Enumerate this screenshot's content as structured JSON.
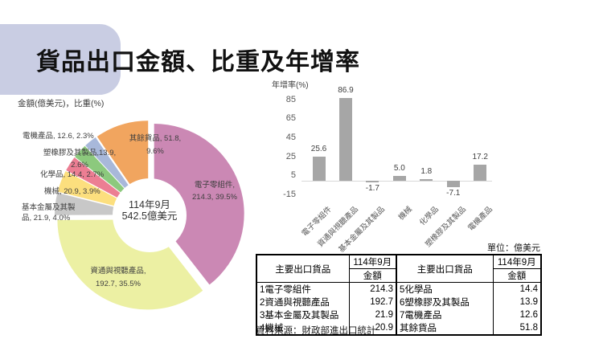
{
  "title": "貨品出口金額、比重及年增率",
  "pie_note": "金額(億美元)，比重(%)",
  "pie_labels": {
    "electrical": [
      "電機產品, 12.6, 2.3%"
    ],
    "others": [
      "其餘貨品, 51.8,",
      "9.6%"
    ],
    "plastics": [
      "塑橡膠及其製品,13.9,",
      "2.6%"
    ],
    "chemicals": [
      "化學品, 14.4, 2.7%"
    ],
    "machinery": [
      "機械, 20.9, 3.9%"
    ],
    "base_metals": [
      "基本金屬及其製",
      "品, 21.9, 4.0%"
    ],
    "electronic_components": [
      "電子零組件,",
      "214.3, 39.5%"
    ],
    "ict_av": [
      "資通與視聽產品,",
      "192.7, 35.5%"
    ],
    "center": [
      "114年9月",
      "542.5億美元"
    ]
  },
  "chart_data": [
    {
      "type": "pie",
      "title": "金額(億美元)，比重(%)",
      "center_label": "114年9月 542.5億美元",
      "categories": [
        "電子零組件",
        "資通與視聽產品",
        "基本金屬及其製品",
        "機械",
        "化學品",
        "塑橡膠及其製品",
        "電機產品",
        "其餘貨品"
      ],
      "amounts": [
        214.3,
        192.7,
        21.9,
        20.9,
        14.4,
        13.9,
        12.6,
        51.8
      ],
      "percents": [
        39.5,
        35.5,
        4.0,
        3.9,
        2.7,
        2.6,
        2.3,
        9.6
      ],
      "colors": [
        "#cb88b4",
        "#ecf0a3",
        "#c8c8c8",
        "#fcdf7e",
        "#ec7e93",
        "#8cc97d",
        "#a8b8da",
        "#f1a55f"
      ],
      "total_label": "542.5"
    },
    {
      "type": "bar",
      "title": "年增率(%)",
      "categories": [
        "電子零組件",
        "資通與視聽產品",
        "基本金屬及其製品",
        "機械",
        "化學品",
        "塑橡膠及其製品",
        "電機產品"
      ],
      "values": [
        25.6,
        86.9,
        -1.7,
        5.0,
        1.8,
        -7.1,
        17.2
      ],
      "value_labels": [
        "25.6",
        "86.9",
        "-1.7",
        "5.0",
        "1.8",
        "-7.1",
        "17.2"
      ],
      "yticks": [
        85,
        65,
        45,
        25,
        5,
        -15
      ],
      "ylim": [
        -15,
        95
      ],
      "bar_color": "#a6a6a6",
      "grid": false,
      "legend": "none"
    },
    {
      "type": "table",
      "unit_note": "單位：億美元",
      "goods_header": "主要出口貨品",
      "period_header": "114年9月",
      "amount_header": "金額",
      "rows": [
        [
          "1電子零組件",
          "214.3",
          "5化學品",
          "14.4"
        ],
        [
          "2資通與視聽產品",
          "192.7",
          "6塑橡膠及其製品",
          "13.9"
        ],
        [
          "3基本金屬及其製品",
          "21.9",
          "7電機產品",
          "12.6"
        ],
        [
          "4機械",
          "20.9",
          "其餘貨品",
          "51.8"
        ]
      ]
    }
  ],
  "table": {
    "unit_note": "單位：億美元",
    "goods_header": "主要出口貨品",
    "period_header": "114年9月",
    "amount_header": "金額",
    "rows": [
      [
        "1電子零組件",
        "214.3",
        "5化學品",
        "14.4"
      ],
      [
        "2資通與視聽產品",
        "192.7",
        "6塑橡膠及其製品",
        "13.9"
      ],
      [
        "3基本金屬及其製品",
        "21.9",
        "7電機產品",
        "12.6"
      ],
      [
        "4機械",
        "20.9",
        "其餘貨品",
        "51.8"
      ]
    ]
  },
  "source": "資料來源：財政部進出口統計",
  "colors": {
    "banner": "#c9cde3",
    "bar": "#a6a6a6",
    "baseline": "#d9d9d9"
  }
}
